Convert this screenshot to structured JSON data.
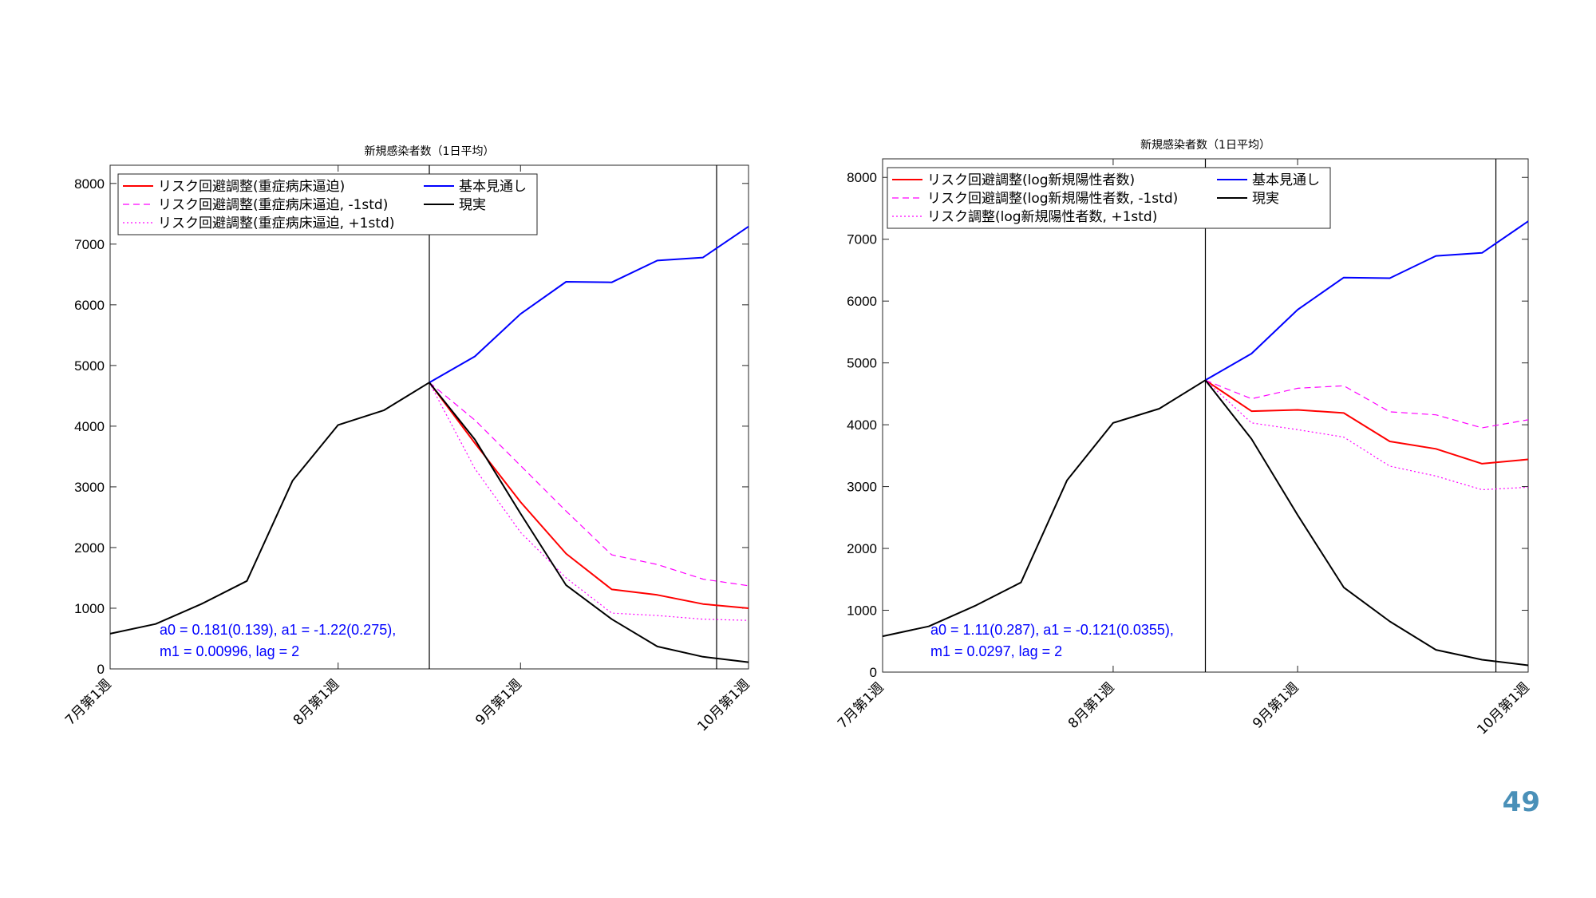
{
  "page_number": "49",
  "colors": {
    "red": "#ff0000",
    "magenta": "#ff00ff",
    "blue": "#0000ff",
    "black": "#000000",
    "annotation": "#0000ff",
    "page_number": "#4a90b8"
  },
  "chart_data": [
    {
      "type": "line",
      "title": "新規感染者数（1日平均）",
      "categories": [
        "7月第1週",
        "",
        "",
        "",
        "",
        "8月第1週",
        "",
        "",
        "",
        "9月第1週",
        "",
        "",
        "",
        "",
        "10月第1週"
      ],
      "xlabel": "",
      "ylabel": "",
      "ylim": [
        0,
        8300
      ],
      "yticks": [
        0,
        1000,
        2000,
        3000,
        4000,
        5000,
        6000,
        7000,
        8000
      ],
      "vlines": [
        7,
        13.3
      ],
      "grid": false,
      "legend_position": "top-left",
      "annotation": [
        "a0 = 0.181(0.139), a1 = -1.22(0.275),",
        "m1 = 0.00996, lag = 2"
      ],
      "series": [
        {
          "name": "リスク回避調整(重症病床逼迫)",
          "color": "#ff0000",
          "dash": "solid",
          "x": [
            7,
            8,
            9,
            10,
            11,
            12,
            13,
            14
          ],
          "values": [
            4720,
            3720,
            2750,
            1900,
            1310,
            1220,
            1070,
            1000
          ]
        },
        {
          "name": "リスク回避調整(重症病床逼迫, -1std)",
          "color": "#ff00ff",
          "dash": "dashed",
          "x": [
            7,
            8,
            9,
            10,
            11,
            12,
            13,
            14
          ],
          "values": [
            4720,
            4100,
            3350,
            2600,
            1880,
            1720,
            1480,
            1370
          ]
        },
        {
          "name": "リスク回避調整(重症病床逼迫, +1std)",
          "color": "#ff00ff",
          "dash": "dotted",
          "x": [
            7,
            8,
            9,
            10,
            11,
            12,
            13,
            14
          ],
          "values": [
            4720,
            3300,
            2250,
            1500,
            920,
            880,
            820,
            800
          ]
        },
        {
          "name": "基本見通し",
          "color": "#0000ff",
          "dash": "solid",
          "x": [
            7,
            8,
            9,
            10,
            11,
            12,
            13,
            14
          ],
          "values": [
            4720,
            5150,
            5850,
            6380,
            6370,
            6730,
            6780,
            7290
          ]
        },
        {
          "name": "現実",
          "color": "#000000",
          "dash": "solid",
          "x": [
            0,
            1,
            2,
            3,
            4,
            5,
            6,
            7,
            8,
            9,
            10,
            11,
            12,
            13,
            14
          ],
          "values": [
            580,
            740,
            1070,
            1450,
            3100,
            4020,
            4260,
            4720,
            3780,
            2560,
            1380,
            820,
            370,
            200,
            110
          ]
        }
      ]
    },
    {
      "type": "line",
      "title": "新規感染者数（1日平均）",
      "categories": [
        "7月第1週",
        "",
        "",
        "",
        "",
        "8月第1週",
        "",
        "",
        "",
        "9月第1週",
        "",
        "",
        "",
        "",
        "10月第1週"
      ],
      "xlabel": "",
      "ylabel": "",
      "ylim": [
        0,
        8300
      ],
      "yticks": [
        0,
        1000,
        2000,
        3000,
        4000,
        5000,
        6000,
        7000,
        8000
      ],
      "vlines": [
        7,
        13.3
      ],
      "grid": false,
      "legend_position": "top-left",
      "annotation": [
        "a0 = 1.11(0.287), a1 = -0.121(0.0355),",
        "m1 = 0.0297, lag = 2"
      ],
      "series": [
        {
          "name": "リスク回避調整(log新規陽性者数)",
          "color": "#ff0000",
          "dash": "solid",
          "x": [
            7,
            8,
            9,
            10,
            11,
            12,
            13,
            14
          ],
          "values": [
            4720,
            4220,
            4240,
            4190,
            3730,
            3610,
            3370,
            3440
          ]
        },
        {
          "name": "リスク回避調整(log新規陽性者数, -1std)",
          "color": "#ff00ff",
          "dash": "dashed",
          "x": [
            7,
            8,
            9,
            10,
            11,
            12,
            13,
            14
          ],
          "values": [
            4720,
            4420,
            4590,
            4630,
            4210,
            4160,
            3950,
            4080
          ]
        },
        {
          "name": "リスク調整(log新規陽性者数, +1std)",
          "color": "#ff00ff",
          "dash": "dotted",
          "x": [
            7,
            8,
            9,
            10,
            11,
            12,
            13,
            14
          ],
          "values": [
            4720,
            4030,
            3920,
            3800,
            3330,
            3170,
            2950,
            2990
          ]
        },
        {
          "name": "基本見通し",
          "color": "#0000ff",
          "dash": "solid",
          "x": [
            7,
            8,
            9,
            10,
            11,
            12,
            13,
            14
          ],
          "values": [
            4720,
            5150,
            5860,
            6380,
            6370,
            6730,
            6780,
            7290
          ]
        },
        {
          "name": "現実",
          "color": "#000000",
          "dash": "solid",
          "x": [
            0,
            1,
            2,
            3,
            4,
            5,
            6,
            7,
            8,
            9,
            10,
            11,
            12,
            13,
            14
          ],
          "values": [
            580,
            740,
            1070,
            1450,
            3100,
            4030,
            4260,
            4720,
            3770,
            2540,
            1370,
            820,
            360,
            200,
            110
          ]
        }
      ]
    }
  ]
}
